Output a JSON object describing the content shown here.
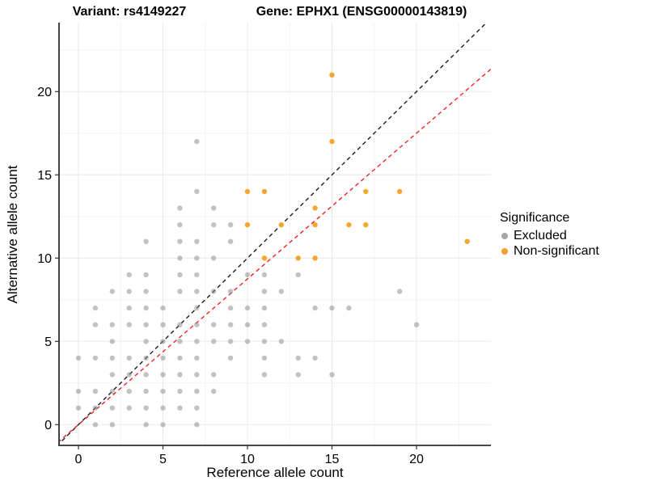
{
  "titles": {
    "left": "Variant: rs4149227",
    "right": "Gene: EPHX1 (ENSG00000143819)"
  },
  "axes": {
    "x": {
      "label": "Reference allele count",
      "ticks": [
        0,
        5,
        10,
        15,
        20
      ]
    },
    "y": {
      "label": "Alternative allele count",
      "ticks": [
        0,
        5,
        10,
        15,
        20
      ]
    }
  },
  "legend": {
    "title": "Significance",
    "items": [
      {
        "label": "Excluded",
        "color": "#A8A8A8"
      },
      {
        "label": "Non-significant",
        "color": "#F6A226"
      }
    ]
  },
  "chart_data": {
    "type": "scatter",
    "title_left": "Variant: rs4149227",
    "title_right": "Gene: EPHX1 (ENSG00000143819)",
    "xlabel": "Reference allele count",
    "ylabel": "Alternative allele count",
    "xlim": [
      -1.2,
      24.4
    ],
    "ylim": [
      -1.3,
      24.1
    ],
    "grid": "on",
    "legend_position": "right",
    "series": [
      {
        "name": "Excluded",
        "color": "#8F8F8F",
        "opacity": 0.55,
        "points": [
          [
            1,
            0
          ],
          [
            2,
            0
          ],
          [
            4,
            0
          ],
          [
            5,
            0
          ],
          [
            7,
            0
          ],
          [
            0,
            1
          ],
          [
            1,
            1
          ],
          [
            2,
            1
          ],
          [
            3,
            1
          ],
          [
            4,
            1
          ],
          [
            5,
            1
          ],
          [
            6,
            1
          ],
          [
            7,
            1
          ],
          [
            0,
            2
          ],
          [
            1,
            2
          ],
          [
            2,
            2
          ],
          [
            3,
            2
          ],
          [
            4,
            2
          ],
          [
            5,
            2
          ],
          [
            6,
            2
          ],
          [
            7,
            2
          ],
          [
            8,
            2
          ],
          [
            2,
            3
          ],
          [
            3,
            3
          ],
          [
            4,
            3
          ],
          [
            5,
            3
          ],
          [
            6,
            3
          ],
          [
            7,
            3
          ],
          [
            8,
            3
          ],
          [
            11,
            3
          ],
          [
            13,
            3
          ],
          [
            15,
            3
          ],
          [
            0,
            4
          ],
          [
            1,
            4
          ],
          [
            2,
            4
          ],
          [
            3,
            4
          ],
          [
            4,
            4
          ],
          [
            5,
            4
          ],
          [
            6,
            4
          ],
          [
            7,
            4
          ],
          [
            9,
            4
          ],
          [
            11,
            4
          ],
          [
            13,
            4
          ],
          [
            14,
            4
          ],
          [
            2,
            5
          ],
          [
            4,
            5
          ],
          [
            5,
            5
          ],
          [
            6,
            5
          ],
          [
            7,
            5
          ],
          [
            8,
            5
          ],
          [
            9,
            5
          ],
          [
            10,
            5
          ],
          [
            11,
            5
          ],
          [
            12,
            5
          ],
          [
            1,
            6
          ],
          [
            2,
            6
          ],
          [
            3,
            6
          ],
          [
            4,
            6
          ],
          [
            5,
            6
          ],
          [
            6,
            6
          ],
          [
            7,
            6
          ],
          [
            8,
            6
          ],
          [
            9,
            6
          ],
          [
            10,
            6
          ],
          [
            11,
            6
          ],
          [
            20,
            6
          ],
          [
            1,
            7
          ],
          [
            3,
            7
          ],
          [
            4,
            7
          ],
          [
            5,
            7
          ],
          [
            7,
            7
          ],
          [
            9,
            7
          ],
          [
            10,
            7
          ],
          [
            11,
            7
          ],
          [
            14,
            7
          ],
          [
            15,
            7
          ],
          [
            16,
            7
          ],
          [
            2,
            8
          ],
          [
            3,
            8
          ],
          [
            4,
            8
          ],
          [
            6,
            8
          ],
          [
            7,
            8
          ],
          [
            8,
            8
          ],
          [
            9,
            8
          ],
          [
            11,
            8
          ],
          [
            12,
            8
          ],
          [
            19,
            8
          ],
          [
            3,
            9
          ],
          [
            4,
            9
          ],
          [
            6,
            9
          ],
          [
            7,
            9
          ],
          [
            10,
            9
          ],
          [
            11,
            9
          ],
          [
            13,
            9
          ],
          [
            6,
            10
          ],
          [
            7,
            10
          ],
          [
            8,
            10
          ],
          [
            4,
            11
          ],
          [
            6,
            11
          ],
          [
            7,
            11
          ],
          [
            9,
            11
          ],
          [
            6,
            12
          ],
          [
            8,
            12
          ],
          [
            9,
            12
          ],
          [
            6,
            13
          ],
          [
            8,
            13
          ],
          [
            7,
            14
          ],
          [
            7,
            17
          ]
        ]
      },
      {
        "name": "Non-significant",
        "color": "#F6A226",
        "opacity": 0.95,
        "points": [
          [
            11,
            10
          ],
          [
            13,
            10
          ],
          [
            14,
            10
          ],
          [
            23,
            11
          ],
          [
            10,
            12
          ],
          [
            12,
            12
          ],
          [
            14,
            12
          ],
          [
            16,
            12
          ],
          [
            17,
            12
          ],
          [
            14,
            13
          ],
          [
            10,
            14
          ],
          [
            11,
            14
          ],
          [
            17,
            14
          ],
          [
            19,
            14
          ],
          [
            15,
            17
          ],
          [
            15,
            21
          ]
        ]
      }
    ],
    "lines": [
      {
        "name": "identity-line",
        "color": "#1A1A1A",
        "style": "dashed",
        "slope": 1,
        "intercept": 0
      },
      {
        "name": "fit-line",
        "color": "#EE2222",
        "style": "dashed",
        "slope": 0.875,
        "intercept": 0
      }
    ]
  }
}
